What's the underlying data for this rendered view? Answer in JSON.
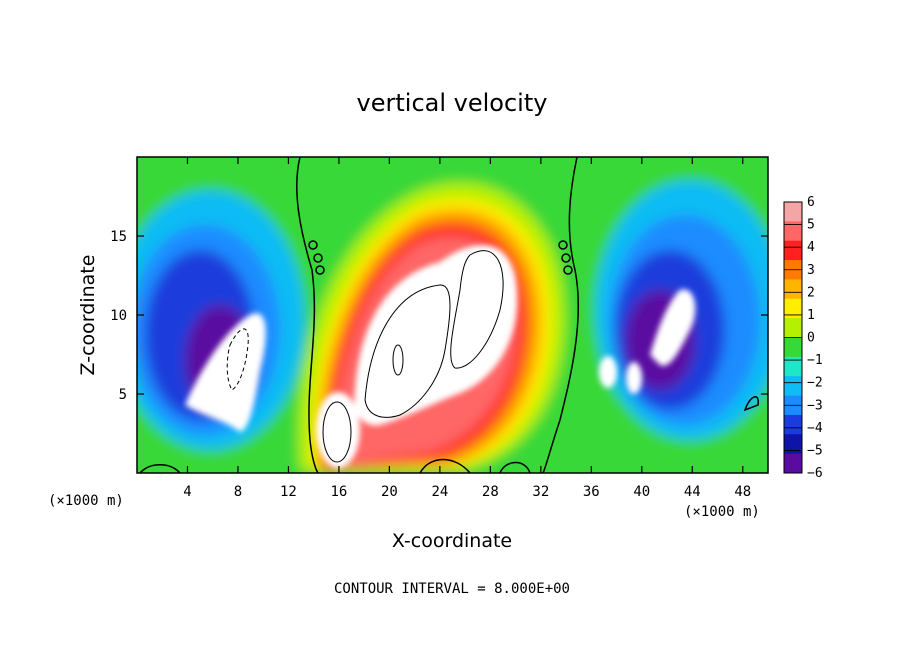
{
  "chart_data": {
    "type": "heatmap",
    "title": "vertical velocity",
    "xlabel": "X-coordinate",
    "ylabel": "Z-coordinate",
    "x_unit_left": "(×1000 m)",
    "x_unit_right": "(×1000 m)",
    "xlim": [
      0,
      50
    ],
    "ylim": [
      0,
      20
    ],
    "x_ticks": [
      4,
      8,
      12,
      16,
      20,
      24,
      28,
      32,
      36,
      40,
      44,
      48
    ],
    "y_ticks": [
      5,
      10,
      15
    ],
    "colorbar": {
      "range": [
        -6,
        6
      ],
      "ticks": [
        "6",
        "5",
        "4",
        "3",
        "2",
        "1",
        "0",
        "−1",
        "−2",
        "−3",
        "−4",
        "−5",
        "−6"
      ],
      "colors": [
        "#f4a6a6",
        "#ff6666",
        "#ff2020",
        "#ff7a00",
        "#ffb400",
        "#ffee00",
        "#b4f000",
        "#38d838",
        "#20e6c8",
        "#10bcf4",
        "#1a8cff",
        "#1a3cdc",
        "#0f14a8",
        "#5a0ca0"
      ]
    },
    "features": [
      {
        "name": "central updraft",
        "x_center": 25,
        "z_center": 10,
        "w_approx": 8
      },
      {
        "name": "left downdraft",
        "x_center": 7,
        "z_center": 8,
        "w_approx": -6
      },
      {
        "name": "right downdraft",
        "x_center": 42,
        "z_center": 9,
        "w_approx": -6
      }
    ],
    "contour_interval_note": "CONTOUR INTERVAL = 8.000E+00"
  }
}
